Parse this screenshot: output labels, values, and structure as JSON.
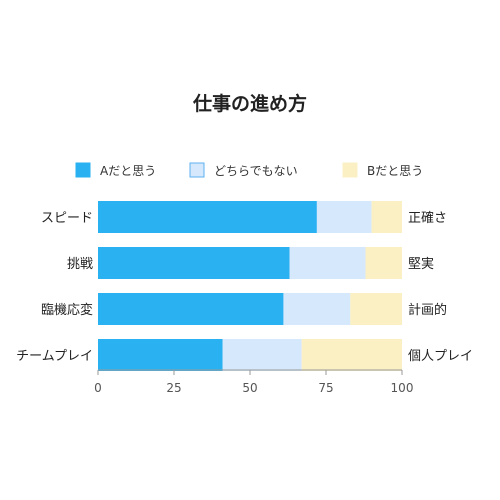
{
  "chart_data": {
    "type": "bar",
    "orientation": "horizontal",
    "stacked": true,
    "title": "仕事の進め方",
    "categories": [
      "スピード",
      "挑戦",
      "臨機応変",
      "チームプレイ"
    ],
    "right_labels": [
      "正確さ",
      "堅実",
      "計画的",
      "個人プレイ"
    ],
    "series": [
      {
        "name": "Aだと思う",
        "values": [
          72,
          63,
          61,
          41
        ],
        "color": "#29b1f2",
        "border": "#29b1f2"
      },
      {
        "name": "どちらでもない",
        "values": [
          18,
          25,
          22,
          26
        ],
        "color": "#d6e8fb",
        "border": "#5fb2f0"
      },
      {
        "name": "Bだと思う",
        "values": [
          10,
          12,
          17,
          33
        ],
        "color": "#faf0c4",
        "border": "#faf0c4"
      }
    ],
    "xlim": [
      0,
      100
    ],
    "xticks": [
      0,
      25,
      50,
      75,
      100
    ],
    "xlabel": "",
    "ylabel": "",
    "legend_position": "top",
    "grid": false
  }
}
